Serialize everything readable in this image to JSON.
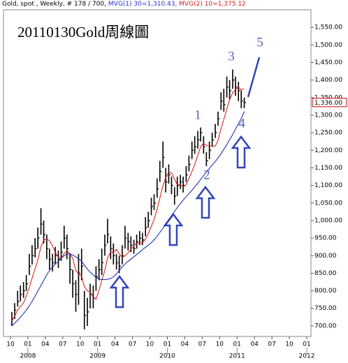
{
  "chart_data": {
    "type": "ohlc",
    "title": "20110130Gold周線圖",
    "header": [
      "Gold, spot , Weekly, # 178 / 700,",
      "MVG(1) 30=1,310.43,",
      "MVG(2) 10=1,375.12"
    ],
    "annotations": [
      "1",
      "2",
      "3",
      "4",
      "5"
    ],
    "x": [
      2007.77,
      2007.81,
      2007.853,
      2007.893,
      2007.937,
      2007.977,
      2008.02,
      2008.06,
      2008.103,
      2008.143,
      2008.187,
      2008.227,
      2008.27,
      2008.31,
      2008.353,
      2008.393,
      2008.437,
      2008.477,
      2008.52,
      2008.56,
      2008.603,
      2008.643,
      2008.687,
      2008.727,
      2008.77,
      2008.81,
      2008.853,
      2008.893,
      2008.937,
      2008.977,
      2009.02,
      2009.06,
      2009.103,
      2009.143,
      2009.187,
      2009.227,
      2009.27,
      2009.31,
      2009.353,
      2009.393,
      2009.437,
      2009.477,
      2009.52,
      2009.56,
      2009.603,
      2009.643,
      2009.687,
      2009.727,
      2009.77,
      2009.81,
      2009.853,
      2009.893,
      2009.937,
      2009.977,
      2010.02,
      2010.06,
      2010.103,
      2010.143,
      2010.187,
      2010.227,
      2010.27,
      2010.31,
      2010.353,
      2010.393,
      2010.437,
      2010.477,
      2010.52,
      2010.56,
      2010.603,
      2010.643,
      2010.687,
      2010.727,
      2010.77,
      2010.81,
      2010.853,
      2010.893,
      2010.937,
      2010.977,
      2011.02,
      2011.06,
      2011.103
    ],
    "high": [
      740,
      765,
      800,
      815,
      825,
      845,
      905,
      930,
      950,
      980,
      1035,
      1000,
      960,
      920,
      905,
      925,
      915,
      940,
      985,
      960,
      905,
      860,
      830,
      905,
      920,
      800,
      780,
      820,
      815,
      870,
      890,
      920,
      960,
      1005,
      955,
      935,
      905,
      900,
      930,
      985,
      965,
      955,
      945,
      960,
      970,
      965,
      1010,
      1025,
      1065,
      1075,
      1120,
      1170,
      1225,
      1150,
      1160,
      1125,
      1095,
      1125,
      1130,
      1125,
      1155,
      1185,
      1225,
      1240,
      1255,
      1265,
      1240,
      1195,
      1225,
      1250,
      1275,
      1310,
      1365,
      1375,
      1410,
      1400,
      1430,
      1410,
      1395,
      1370,
      1350
    ],
    "low": [
      700,
      720,
      755,
      770,
      780,
      800,
      845,
      875,
      895,
      920,
      960,
      935,
      890,
      860,
      855,
      875,
      865,
      885,
      920,
      890,
      820,
      780,
      740,
      760,
      830,
      690,
      700,
      750,
      750,
      800,
      830,
      845,
      900,
      935,
      890,
      875,
      860,
      850,
      875,
      920,
      915,
      910,
      905,
      920,
      930,
      930,
      955,
      980,
      1015,
      1030,
      1065,
      1110,
      1150,
      1080,
      1105,
      1075,
      1045,
      1070,
      1090,
      1080,
      1110,
      1140,
      1175,
      1190,
      1205,
      1225,
      1190,
      1155,
      1175,
      1210,
      1235,
      1270,
      1315,
      1310,
      1350,
      1345,
      1375,
      1355,
      1340,
      1320,
      1320
    ],
    "close": [
      720,
      745,
      770,
      790,
      800,
      820,
      870,
      900,
      920,
      950,
      990,
      960,
      920,
      890,
      880,
      900,
      890,
      910,
      950,
      920,
      860,
      820,
      790,
      850,
      870,
      730,
      740,
      790,
      780,
      840,
      860,
      880,
      930,
      960,
      920,
      900,
      880,
      870,
      900,
      950,
      940,
      930,
      920,
      940,
      950,
      945,
      980,
      1000,
      1040,
      1050,
      1090,
      1140,
      1180,
      1110,
      1130,
      1100,
      1070,
      1100,
      1110,
      1100,
      1130,
      1160,
      1200,
      1210,
      1230,
      1250,
      1210,
      1170,
      1200,
      1230,
      1250,
      1290,
      1340,
      1330,
      1380,
      1370,
      1400,
      1380,
      1370,
      1340,
      1336
    ],
    "bar_color": "#000000",
    "series": [
      {
        "name": "MVG(2) 10",
        "color": "#dd1111",
        "values": [
          715,
          728,
          745,
          756,
          765,
          785,
          810,
          836,
          862,
          888,
          926,
          944,
          948,
          942,
          928,
          910,
          896,
          894,
          906,
          914,
          906,
          892,
          858,
          848,
          842,
          812,
          800,
          796,
          782,
          776,
          802,
          830,
          858,
          894,
          910,
          910,
          918,
          906,
          894,
          900,
          908,
          918,
          928,
          936,
          936,
          937,
          947,
          963,
          983,
          1003,
          1032,
          1064,
          1100,
          1122,
          1138,
          1136,
          1118,
          1102,
          1102,
          1096,
          1102,
          1120,
          1140,
          1160,
          1186,
          1210,
          1220,
          1214,
          1212,
          1212,
          1212,
          1228,
          1262,
          1288,
          1318,
          1344,
          1364,
          1372,
          1380,
          1372,
          1375.12
        ]
      },
      {
        "name": "MVG(1) 30",
        "color": "#1122aa",
        "values": [
          700,
          708,
          716,
          725,
          735,
          745,
          757,
          770,
          785,
          800,
          815,
          830,
          845,
          858,
          868,
          876,
          884,
          892,
          900,
          905,
          905,
          902,
          897,
          891,
          885,
          873,
          862,
          853,
          845,
          838,
          834,
          832,
          832,
          833,
          835,
          840,
          848,
          858,
          868,
          876,
          884,
          890,
          897,
          903,
          910,
          917,
          924,
          930,
          937,
          945,
          955,
          966,
          978,
          990,
          1002,
          1014,
          1026,
          1037,
          1048,
          1058,
          1068,
          1077,
          1086,
          1096,
          1106,
          1117,
          1128,
          1138,
          1148,
          1158,
          1168,
          1178,
          1190,
          1203,
          1216,
          1230,
          1245,
          1260,
          1275,
          1290,
          1310.43
        ]
      }
    ],
    "last_price": {
      "value": 1336,
      "label": "1,336.00"
    },
    "last_price_color": "#cc0000",
    "xlim": [
      2007.65,
      2012.06
    ],
    "ylim": [
      670,
      1600
    ],
    "yticks": [
      {
        "value": 700,
        "label": "700.00"
      },
      {
        "value": 750,
        "label": "750.00"
      },
      {
        "value": 800,
        "label": "800.00"
      },
      {
        "value": 850,
        "label": "850.00"
      },
      {
        "value": 900,
        "label": "900.00"
      },
      {
        "value": 950,
        "label": "950.00"
      },
      {
        "value": 1000,
        "label": "1,000.00"
      },
      {
        "value": 1050,
        "label": "1,050.00"
      },
      {
        "value": 1100,
        "label": "1,100.00"
      },
      {
        "value": 1150,
        "label": "1,150.00"
      },
      {
        "value": 1200,
        "label": "1,200.00"
      },
      {
        "value": 1250,
        "label": "1,250.00"
      },
      {
        "value": 1300,
        "label": "1,300.00"
      },
      {
        "value": 1350,
        "label": "1,350.00"
      },
      {
        "value": 1400,
        "label": "1,400.00"
      },
      {
        "value": 1450,
        "label": "1,450.00"
      },
      {
        "value": 1500,
        "label": "1,500.00"
      },
      {
        "value": 1550,
        "label": "1,550.00"
      }
    ],
    "xticks": [
      {
        "value": 2007.75,
        "label": "10"
      },
      {
        "value": 2008,
        "label": "01"
      },
      {
        "value": 2008.25,
        "label": "04"
      },
      {
        "value": 2008.5,
        "label": "07"
      },
      {
        "value": 2008.75,
        "label": "10"
      },
      {
        "value": 2009,
        "label": "01"
      },
      {
        "value": 2009.25,
        "label": "04"
      },
      {
        "value": 2009.5,
        "label": "07"
      },
      {
        "value": 2009.75,
        "label": "10"
      },
      {
        "value": 2010,
        "label": "01"
      },
      {
        "value": 2010.25,
        "label": "04"
      },
      {
        "value": 2010.5,
        "label": "07"
      },
      {
        "value": 2010.75,
        "label": "10"
      },
      {
        "value": 2011,
        "label": "01"
      },
      {
        "value": 2011.25,
        "label": "04"
      },
      {
        "value": 2011.5,
        "label": "07"
      },
      {
        "value": 2011.75,
        "label": "10"
      },
      {
        "value": 2012,
        "label": "01"
      }
    ],
    "year_ticks": [
      2008,
      2009,
      2010,
      2011,
      2012
    ],
    "grid": false
  }
}
